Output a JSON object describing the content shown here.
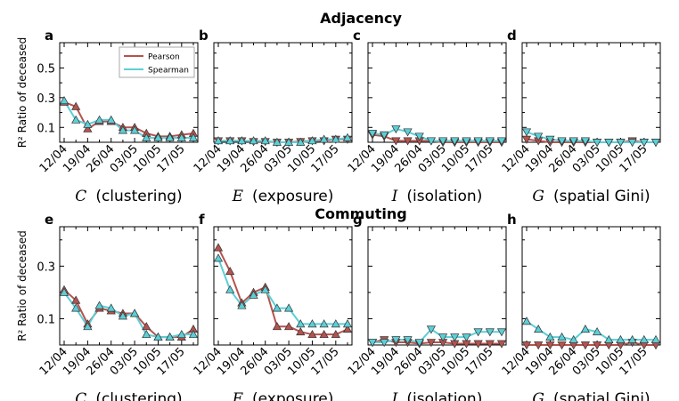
{
  "figure": {
    "titles": [
      "Adjacency",
      "Commuting"
    ]
  },
  "chart_data": [
    {
      "type": "line",
      "panel": "a",
      "ylabel": "R² Ratio of deceased",
      "xlabel_symbol": "C",
      "xlabel": "(clustering)",
      "legend": true,
      "legend_loc": "upper right",
      "categories": [
        "12/04",
        null,
        "19/04",
        null,
        "26/04",
        null,
        "03/05",
        null,
        "10/05",
        null,
        "17/05",
        null
      ],
      "ylim": [
        0,
        0.67
      ],
      "yticks": [
        0.1,
        0.3,
        0.5
      ],
      "yminor_ticks": [
        0.2,
        0.4,
        0.6
      ],
      "series": [
        {
          "name": "Pearson",
          "color": "#b5534f",
          "marker": "^",
          "values": [
            0.27,
            0.24,
            0.09,
            0.14,
            0.14,
            0.1,
            0.1,
            0.06,
            0.04,
            0.04,
            0.05,
            0.06
          ]
        },
        {
          "name": "Spearman",
          "color": "#5ccfd6",
          "marker": "^",
          "values": [
            0.28,
            0.15,
            0.12,
            0.15,
            0.15,
            0.08,
            0.08,
            0.03,
            0.03,
            0.03,
            0.03,
            0.03
          ]
        }
      ]
    },
    {
      "type": "line",
      "panel": "b",
      "xlabel_symbol": "E",
      "xlabel": "(exposure)",
      "legend": false,
      "categories": [
        "12/04",
        null,
        "19/04",
        null,
        "26/04",
        null,
        "03/05",
        null,
        "10/05",
        null,
        "17/05",
        null
      ],
      "ylim": [
        0,
        0.67
      ],
      "yticks": [
        0.1,
        0.3,
        0.5
      ],
      "yminor_ticks": [
        0.2,
        0.4,
        0.6
      ],
      "series": [
        {
          "color": "#b5534f",
          "marker": "v",
          "values": [
            0.01,
            0.01,
            0.01,
            0.005,
            0.005,
            0,
            0,
            0.005,
            0.01,
            0.01,
            0.02,
            0.02
          ]
        },
        {
          "color": "#5ccfd6",
          "marker": "^",
          "values": [
            0.01,
            0.01,
            0.01,
            0.01,
            0.01,
            0,
            0,
            0,
            0.01,
            0.02,
            0.02,
            0.03
          ]
        }
      ]
    },
    {
      "type": "line",
      "panel": "c",
      "xlabel_symbol": "I",
      "xlabel": "(isolation)",
      "legend": false,
      "categories": [
        "12/04",
        null,
        "19/04",
        null,
        "26/04",
        null,
        "03/05",
        null,
        "10/05",
        null,
        "17/05",
        null
      ],
      "ylim": [
        0,
        0.67
      ],
      "yticks": [
        0.1,
        0.3,
        0.5
      ],
      "yminor_ticks": [
        0.2,
        0.4,
        0.6
      ],
      "series": [
        {
          "color": "#b5534f",
          "marker": "v",
          "values": [
            0.05,
            0.04,
            0.01,
            0.01,
            0.01,
            0.01,
            0,
            0,
            0,
            0,
            0,
            0
          ]
        },
        {
          "color": "#5ccfd6",
          "marker": "v",
          "values": [
            0.06,
            0.05,
            0.09,
            0.07,
            0.04,
            0.01,
            0.01,
            0.01,
            0.01,
            0.01,
            0.01,
            0.01
          ]
        }
      ]
    },
    {
      "type": "line",
      "panel": "d",
      "xlabel_symbol": "G",
      "xlabel": "(spatial Gini)",
      "legend": false,
      "categories": [
        "12/04",
        null,
        "19/04",
        null,
        "26/04",
        null,
        "03/05",
        null,
        "10/05",
        null,
        "17/05",
        null
      ],
      "ylim": [
        0,
        0.67
      ],
      "yticks": [
        0.1,
        0.3,
        0.5
      ],
      "yminor_ticks": [
        0.2,
        0.4,
        0.6
      ],
      "series": [
        {
          "color": "#b5534f",
          "marker": "v",
          "values": [
            0.02,
            0.01,
            0,
            0,
            0,
            0,
            0,
            0,
            0,
            0.01,
            0,
            0
          ]
        },
        {
          "color": "#5ccfd6",
          "marker": "v",
          "values": [
            0.07,
            0.04,
            0.02,
            0.01,
            0.01,
            0.01,
            0,
            0,
            0,
            0,
            0,
            0
          ]
        }
      ]
    },
    {
      "type": "line",
      "panel": "e",
      "ylabel": "R² Ratio of deceased",
      "xlabel_symbol": "C",
      "xlabel": "(clustering)",
      "legend": false,
      "categories": [
        "12/04",
        null,
        "19/04",
        null,
        "26/04",
        null,
        "03/05",
        null,
        "10/05",
        null,
        "17/05",
        null
      ],
      "ylim": [
        0,
        0.45
      ],
      "yticks": [
        0.1,
        0.3
      ],
      "yminor_ticks": [
        0.2,
        0.4
      ],
      "series": [
        {
          "color": "#b5534f",
          "marker": "^",
          "values": [
            0.21,
            0.17,
            0.08,
            0.14,
            0.13,
            0.12,
            0.12,
            0.07,
            0.03,
            0.03,
            0.03,
            0.06
          ]
        },
        {
          "color": "#5ccfd6",
          "marker": "^",
          "values": [
            0.2,
            0.14,
            0.07,
            0.15,
            0.14,
            0.11,
            0.12,
            0.04,
            0.03,
            0.03,
            0.04,
            0.04
          ]
        }
      ]
    },
    {
      "type": "line",
      "panel": "f",
      "xlabel_symbol": "E",
      "xlabel": "(exposure)",
      "legend": false,
      "categories": [
        "12/04",
        null,
        "19/04",
        null,
        "26/04",
        null,
        "03/05",
        null,
        "10/05",
        null,
        "17/05",
        null
      ],
      "ylim": [
        0,
        0.45
      ],
      "yticks": [
        0.1,
        0.3
      ],
      "yminor_ticks": [
        0.2,
        0.4
      ],
      "series": [
        {
          "color": "#b5534f",
          "marker": "^",
          "values": [
            0.37,
            0.28,
            0.16,
            0.2,
            0.22,
            0.07,
            0.07,
            0.05,
            0.04,
            0.04,
            0.04,
            0.06
          ]
        },
        {
          "color": "#5ccfd6",
          "marker": "^",
          "values": [
            0.33,
            0.21,
            0.15,
            0.19,
            0.21,
            0.14,
            0.14,
            0.08,
            0.08,
            0.08,
            0.08,
            0.08
          ]
        }
      ]
    },
    {
      "type": "line",
      "panel": "g",
      "xlabel_symbol": "I",
      "xlabel": "(isolation)",
      "legend": false,
      "categories": [
        "12/04",
        null,
        "19/04",
        null,
        "26/04",
        null,
        "03/05",
        null,
        "10/05",
        null,
        "17/05",
        null
      ],
      "ylim": [
        0,
        0.45
      ],
      "yticks": [
        0.1,
        0.3
      ],
      "yminor_ticks": [
        0.2,
        0.4
      ],
      "series": [
        {
          "color": "#b5534f",
          "marker": "v",
          "values": [
            0.01,
            0.02,
            0.01,
            0.01,
            0.005,
            0.01,
            0.01,
            0.005,
            0.005,
            0.005,
            0.005,
            0.005
          ]
        },
        {
          "color": "#5ccfd6",
          "marker": "v",
          "values": [
            0.01,
            0.01,
            0.02,
            0.02,
            0.01,
            0.06,
            0.03,
            0.03,
            0.03,
            0.05,
            0.05,
            0.05
          ]
        }
      ]
    },
    {
      "type": "line",
      "panel": "h",
      "xlabel_symbol": "G",
      "xlabel": "(spatial Gini)",
      "legend": false,
      "categories": [
        "12/04",
        null,
        "19/04",
        null,
        "26/04",
        null,
        "03/05",
        null,
        "10/05",
        null,
        "17/05",
        null
      ],
      "ylim": [
        0,
        0.45
      ],
      "yticks": [
        0.1,
        0.3
      ],
      "yminor_ticks": [
        0.2,
        0.4
      ],
      "series": [
        {
          "color": "#b5534f",
          "marker": "v",
          "values": [
            0,
            0,
            0,
            0,
            0,
            0,
            0,
            0,
            0,
            0.01,
            0,
            0
          ]
        },
        {
          "color": "#5ccfd6",
          "marker": "^",
          "values": [
            0.09,
            0.06,
            0.03,
            0.03,
            0.02,
            0.06,
            0.05,
            0.02,
            0.02,
            0.02,
            0.02,
            0.02
          ]
        }
      ]
    }
  ]
}
